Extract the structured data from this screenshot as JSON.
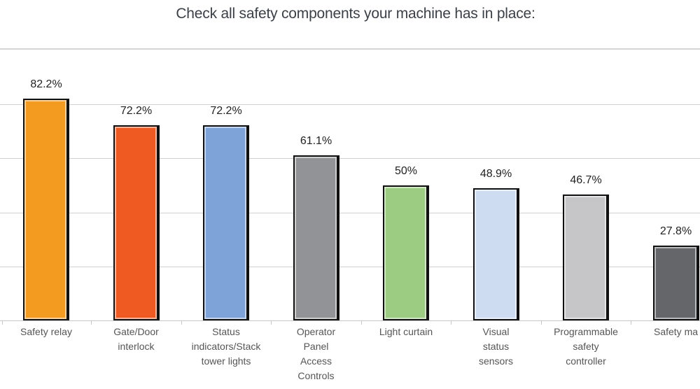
{
  "chart_data": {
    "type": "bar",
    "title": "Check all safety components your machine has in place:",
    "xlabel": "",
    "ylabel": "",
    "ylim": [
      0,
      100
    ],
    "grid": true,
    "legend": null,
    "categories": [
      "Safety relay",
      "Gate/Door interlock",
      "Status indicators/Stack tower lights",
      "Operator Panel Access Controls",
      "Light curtain",
      "Visual status sensors",
      "Programmable safety controller",
      "Safety ma..."
    ],
    "values": [
      82.2,
      72.2,
      72.2,
      61.1,
      50,
      48.9,
      46.7,
      27.8
    ],
    "value_labels": [
      "82.2%",
      "72.2%",
      "72.2%",
      "61.1%",
      "50%",
      "48.9%",
      "46.7%",
      "27.8%"
    ],
    "colors": [
      "#f39a21",
      "#ee5a22",
      "#7ea3d8",
      "#929396",
      "#9ccb82",
      "#cddcf0",
      "#c6c6c9",
      "#656669"
    ]
  },
  "display": {
    "category_lines": [
      "Safety relay",
      "Gate/Door\ninterlock",
      "Status\nindicators/Stack\ntower lights",
      "Operator\nPanel\nAccess\nControls",
      "Light curtain",
      "Visual\nstatus\nsensors",
      "Programmable\nsafety\ncontroller",
      "Safety ma"
    ]
  }
}
